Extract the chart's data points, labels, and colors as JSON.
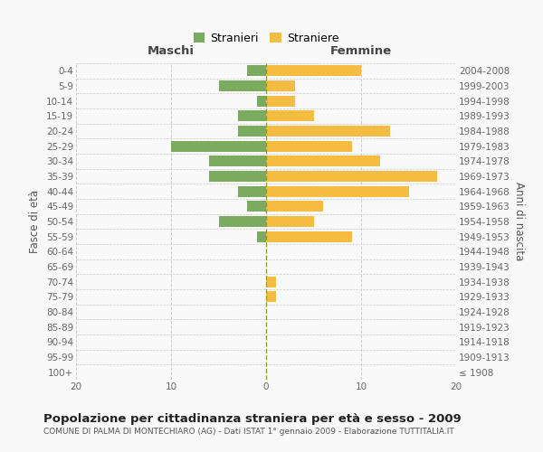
{
  "age_groups": [
    "100+",
    "95-99",
    "90-94",
    "85-89",
    "80-84",
    "75-79",
    "70-74",
    "65-69",
    "60-64",
    "55-59",
    "50-54",
    "45-49",
    "40-44",
    "35-39",
    "30-34",
    "25-29",
    "20-24",
    "15-19",
    "10-14",
    "5-9",
    "0-4"
  ],
  "birth_years": [
    "≤ 1908",
    "1909-1913",
    "1914-1918",
    "1919-1923",
    "1924-1928",
    "1929-1933",
    "1934-1938",
    "1939-1943",
    "1944-1948",
    "1949-1953",
    "1954-1958",
    "1959-1963",
    "1964-1968",
    "1969-1973",
    "1974-1978",
    "1979-1983",
    "1984-1988",
    "1989-1993",
    "1994-1998",
    "1999-2003",
    "2004-2008"
  ],
  "maschi": [
    0,
    0,
    0,
    0,
    0,
    0,
    0,
    0,
    0,
    1,
    5,
    2,
    3,
    6,
    6,
    10,
    3,
    3,
    1,
    5,
    2
  ],
  "femmine": [
    0,
    0,
    0,
    0,
    0,
    1,
    1,
    0,
    0,
    9,
    5,
    6,
    15,
    18,
    12,
    9,
    13,
    5,
    3,
    3,
    10
  ],
  "maschi_color": "#7aab5e",
  "femmine_color": "#f5bc42",
  "background_color": "#f9f9f9",
  "grid_color": "#cccccc",
  "centerline_color": "#999933",
  "title": "Popolazione per cittadinanza straniera per età e sesso - 2009",
  "subtitle": "COMUNE DI PALMA DI MONTECHIARO (AG) - Dati ISTAT 1° gennaio 2009 - Elaborazione TUTTITALIA.IT",
  "ylabel_left": "Fasce di età",
  "ylabel_right": "Anni di nascita",
  "header_left": "Maschi",
  "header_right": "Femmine",
  "legend_maschi": "Stranieri",
  "legend_femmine": "Straniere",
  "xlim": 20,
  "title_fontsize": 9.5,
  "subtitle_fontsize": 6.5,
  "tick_fontsize": 7.5,
  "header_fontsize": 9.5,
  "ylabel_fontsize": 8.5,
  "legend_fontsize": 9
}
